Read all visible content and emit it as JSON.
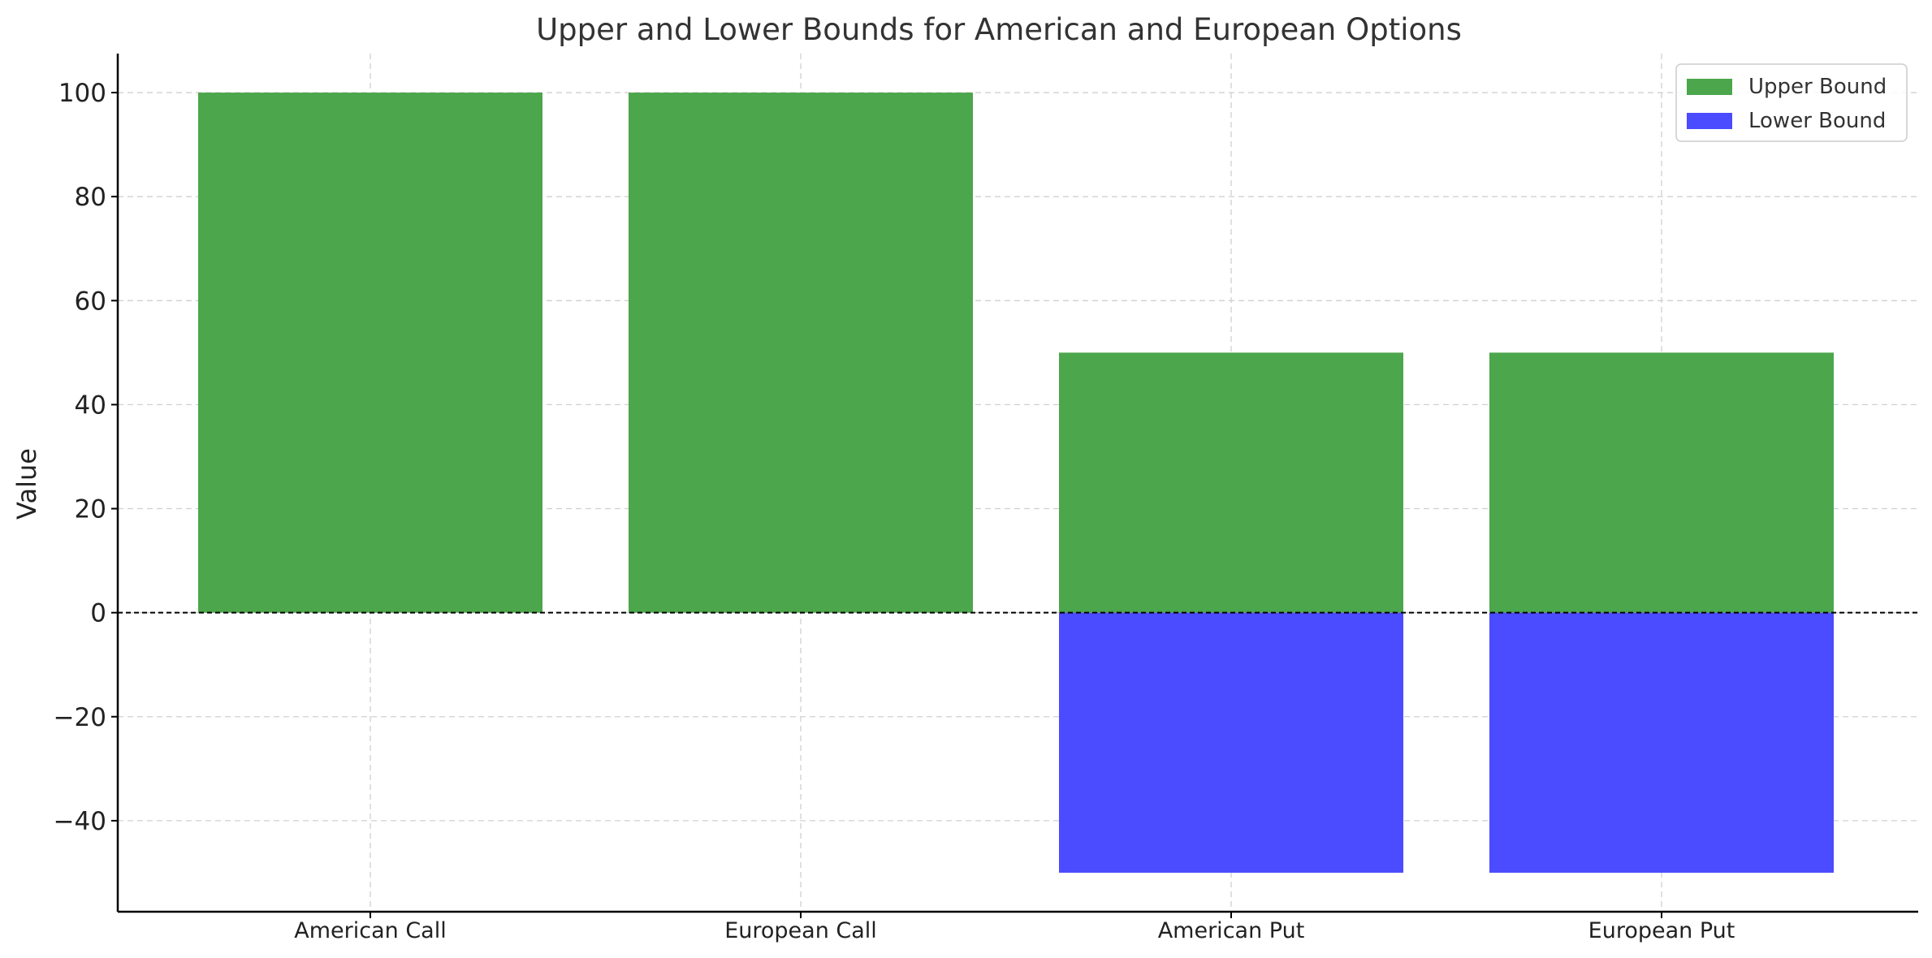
{
  "chart_data": {
    "type": "bar",
    "title": "Upper and Lower Bounds for American and European Options",
    "xlabel": "",
    "ylabel": "Value",
    "categories": [
      "American Call",
      "European Call",
      "American Put",
      "European Put"
    ],
    "series": [
      {
        "name": "Upper Bound",
        "values": [
          100,
          100,
          50,
          50
        ],
        "color": "#4ca64c"
      },
      {
        "name": "Lower Bound",
        "values": [
          0,
          0,
          -50,
          -50
        ],
        "color": "#4b4bff"
      }
    ],
    "ylim": [
      -57.5,
      107.5
    ],
    "yticks": [
      -40,
      -20,
      0,
      20,
      40,
      60,
      80,
      100
    ],
    "ytick_labels": [
      "−40",
      "−20",
      "0",
      "20",
      "40",
      "60",
      "80",
      "100"
    ],
    "grid": true,
    "zero_line": true,
    "legend_position": "top-right",
    "colors": {
      "upper": "#4ca64c",
      "lower": "#4b4bff",
      "grid": "#d0d0d0",
      "axis": "#000000"
    }
  }
}
